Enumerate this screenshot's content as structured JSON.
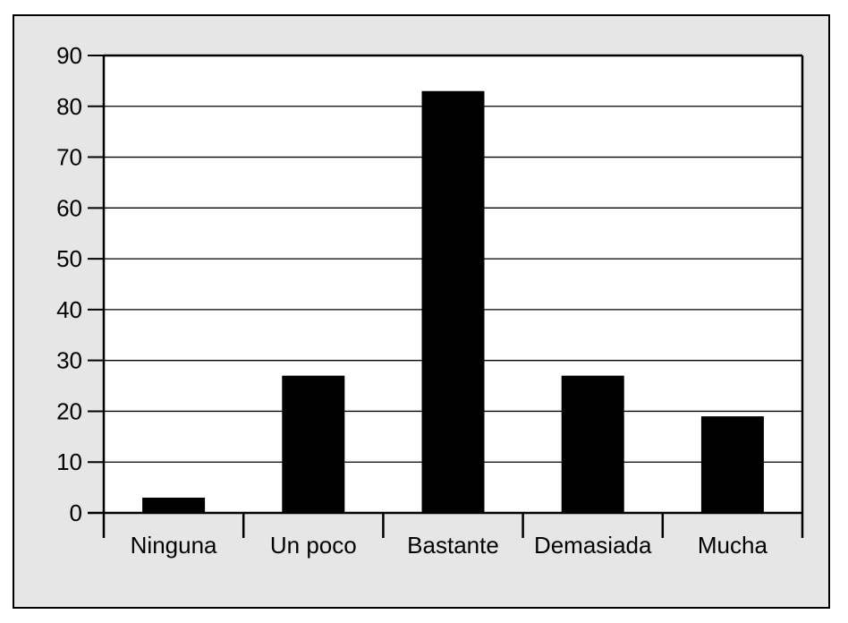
{
  "chart_data": {
    "type": "bar",
    "title": "",
    "xlabel": "",
    "ylabel": "",
    "categories": [
      "Ninguna",
      "Un poco",
      "Bastante",
      "Demasiada",
      "Mucha"
    ],
    "values": [
      3,
      27,
      83,
      27,
      19
    ],
    "ylim": [
      0,
      90
    ],
    "yticks": [
      "0",
      "10",
      "20",
      "30",
      "40",
      "50",
      "60",
      "70",
      "80",
      "90"
    ],
    "grid": "horizontal",
    "legend": "none",
    "colors": {
      "bar": "#000000",
      "plot_background": "#ffffff",
      "figure_background": "#e6e6e6",
      "grid": "#000000"
    }
  }
}
